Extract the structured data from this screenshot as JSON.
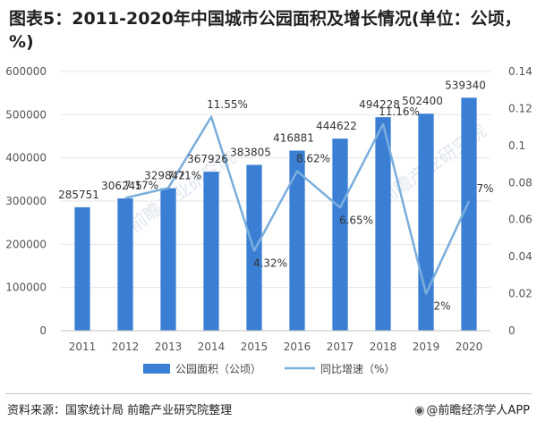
{
  "title": "图表5：2011-2020年中国城市公园面积及增长情况(单位：公顷，%)",
  "source": "资料来源：国家统计局 前瞻产业研究院整理",
  "credit": "@前瞻经济学人APP",
  "watermark": "前瞻产业研究院",
  "colors": {
    "bar": "#3b7fd4",
    "line": "#7aaedc",
    "grid": "#e6e6e6"
  },
  "chart_data": {
    "type": "bar",
    "categories": [
      "2011",
      "2012",
      "2013",
      "2014",
      "2015",
      "2016",
      "2017",
      "2018",
      "2019",
      "2020"
    ],
    "series": [
      {
        "name": "公园面积（公顷）",
        "type": "bar",
        "axis": "left",
        "values": [
          285751,
          306245,
          329842,
          367926,
          383805,
          416881,
          444622,
          494228,
          502400,
          539340
        ]
      },
      {
        "name": "同比增速（%）",
        "type": "line",
        "axis": "right",
        "values": [
          null,
          0.0717,
          0.0771,
          0.1155,
          0.0432,
          0.0862,
          0.0665,
          0.1116,
          0.02,
          0.07
        ],
        "labels": [
          "",
          "7.17%",
          "7.71%",
          "11.55%",
          "4.32%",
          "8.62%",
          "6.65%",
          "11.16%",
          "2%",
          "7%"
        ]
      }
    ],
    "ylim": [
      0,
      600000
    ],
    "yticks": [
      "0",
      "100000",
      "200000",
      "300000",
      "400000",
      "500000",
      "600000"
    ],
    "y2lim": [
      0,
      0.14
    ],
    "y2ticks": [
      "0",
      "0.02",
      "0.04",
      "0.06",
      "0.08",
      "0.1",
      "0.12",
      "0.14"
    ],
    "legend": "bottom"
  }
}
